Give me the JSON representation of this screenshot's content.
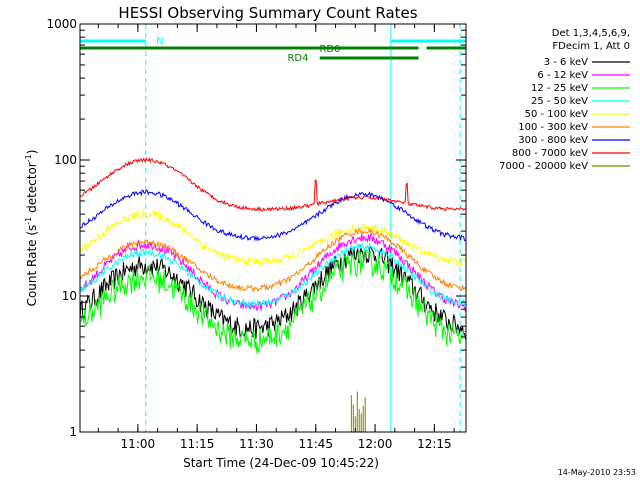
{
  "chart_data": {
    "type": "line",
    "title": "HESSI Observing Summary Count Rates",
    "xlabel": "Start Time (24-Dec-09 10:45:22)",
    "ylabel_main": "Count Rate (s",
    "ylabel_sup1": "-1",
    "ylabel_mid": " detector",
    "ylabel_sup2": "-1",
    "ylabel_end": ")",
    "x_scale": "time",
    "y_scale": "log",
    "xlim": [
      "10:45:22",
      "12:23:00"
    ],
    "ylim": [
      1,
      1000
    ],
    "x_ticks": [
      {
        "t": "11:00",
        "label": "11:00"
      },
      {
        "t": "11:15",
        "label": "11:15"
      },
      {
        "t": "11:30",
        "label": "11:30"
      },
      {
        "t": "11:45",
        "label": "11:45"
      },
      {
        "t": "12:00",
        "label": "12:00"
      },
      {
        "t": "12:15",
        "label": "12:15"
      }
    ],
    "y_ticks": [
      {
        "v": 1,
        "label": "1"
      },
      {
        "v": 10,
        "label": "10"
      },
      {
        "v": 100,
        "label": "100"
      },
      {
        "v": 1000,
        "label": "1000"
      }
    ],
    "legend": {
      "header1": "Det 1,3,4,5,6,9,",
      "header2": "FDecim 1, Att 0",
      "placement": "right"
    },
    "series": [
      {
        "name": "3 - 6 keV",
        "color": "#000000",
        "base": 5.5,
        "peak1": 17,
        "peak2": 21,
        "noise": 0.18
      },
      {
        "name": "6 - 12 keV",
        "color": "#ff00ff",
        "base": 8,
        "peak1": 24,
        "peak2": 27,
        "noise": 0.08
      },
      {
        "name": "12 - 25 keV",
        "color": "#00ff00",
        "base": 4.5,
        "peak1": 14,
        "peak2": 18,
        "noise": 0.22
      },
      {
        "name": "25 - 50 keV",
        "color": "#00ffff",
        "base": 8.5,
        "peak1": 21,
        "peak2": 23,
        "noise": 0.06
      },
      {
        "name": "50 - 100 keV",
        "color": "#ffff00",
        "base": 17.5,
        "peak1": 40,
        "peak2": 32,
        "noise": 0.07
      },
      {
        "name": "100 - 300 keV",
        "color": "#ff8000",
        "base": 11,
        "peak1": 25,
        "peak2": 30,
        "noise": 0.05
      },
      {
        "name": "300 - 800 keV",
        "color": "#0000ff",
        "base": 26,
        "peak1": 58,
        "peak2": 56,
        "noise": 0.04
      },
      {
        "name": "800 - 7000 keV",
        "color": "#ff0000",
        "base": 43,
        "peak1": 100,
        "peak2": 53,
        "noise": 0.03
      },
      {
        "name": "7000 - 20000 keV",
        "color": "#808000",
        "base": 0,
        "peak1": 0,
        "peak2": 0,
        "noise": 0
      }
    ],
    "flag_bars": [
      {
        "label": "N",
        "color": "#00ffff",
        "segments": [
          [
            "10:45:22",
            "11:02:00"
          ],
          [
            "12:04:00",
            "12:23:00"
          ]
        ]
      },
      {
        "label": "RD0",
        "color": "#008000",
        "segments": [
          [
            "10:45:22",
            "12:11:00"
          ],
          [
            "12:13:00",
            "12:23:00"
          ]
        ]
      },
      {
        "label": "RD4",
        "color": "#008000",
        "segments": [
          [
            "11:46:00",
            "12:11:00"
          ]
        ]
      }
    ],
    "vlines": [
      {
        "t": "11:02:00",
        "style": "dashed",
        "color": "#00ffff"
      },
      {
        "t": "12:04:00",
        "style": "solid",
        "color": "#00ffff"
      },
      {
        "t": "12:21:30",
        "style": "dashed",
        "color": "#00ffff"
      },
      {
        "t": "10:45:22",
        "style": "solid",
        "color": "#00ffff"
      }
    ],
    "grid": false
  },
  "footer": {
    "timestamp": "14-May-2010 23:53"
  }
}
